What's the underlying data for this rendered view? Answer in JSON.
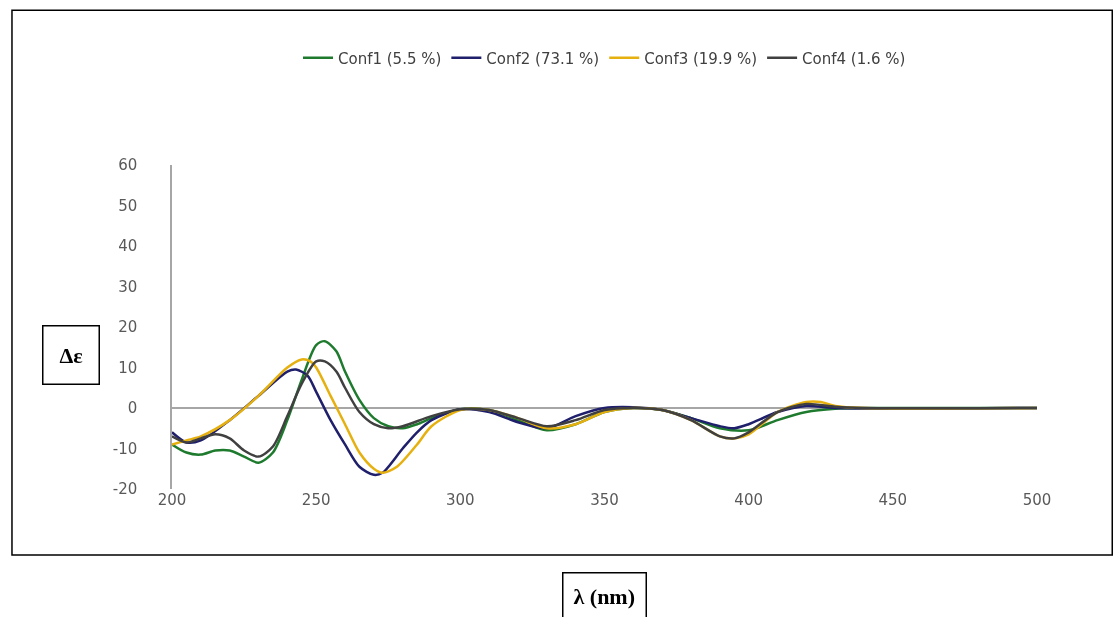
{
  "chart_data": {
    "type": "line",
    "xlabel": "λ (nm)",
    "ylabel": "Δε",
    "xlim": [
      200,
      500
    ],
    "xticks": [
      200,
      250,
      300,
      350,
      400,
      450,
      500
    ],
    "ylim": [
      -20,
      60
    ],
    "yticks": [
      -20,
      -10,
      0,
      10,
      20,
      30,
      40,
      50,
      60
    ],
    "grid": false,
    "legend": "top",
    "marker": "none",
    "line_style": "solid",
    "ref_lines": [
      {
        "axis": "y",
        "value": 0,
        "color": "#a6a6a6"
      }
    ],
    "series": [
      {
        "name": "Conf1 (5.5 %)",
        "color": "#1e7b2e",
        "x": [
          200,
          205,
          210,
          215,
          220,
          225,
          230,
          235,
          240,
          245,
          250,
          253,
          257,
          260,
          265,
          270,
          275,
          280,
          285,
          290,
          300,
          310,
          320,
          330,
          340,
          350,
          360,
          370,
          380,
          390,
          400,
          410,
          420,
          430,
          440,
          500
        ],
        "values": [
          -9,
          -11,
          -11.5,
          -10.5,
          -10.5,
          -12,
          -13.5,
          -11,
          -3,
          7,
          15.5,
          16.5,
          14,
          9,
          2,
          -2.5,
          -4.5,
          -5,
          -4,
          -2.5,
          -0.3,
          -0.5,
          -3,
          -5.5,
          -4,
          -1,
          0,
          -0.5,
          -2.5,
          -5,
          -5.5,
          -3,
          -1,
          -0.2,
          0,
          0
        ]
      },
      {
        "name": "Conf2 (73.1 %)",
        "color": "#1f1f6b",
        "x": [
          200,
          205,
          210,
          220,
          230,
          240,
          243,
          247,
          250,
          255,
          260,
          265,
          270,
          273,
          280,
          285,
          290,
          300,
          310,
          320,
          330,
          340,
          350,
          360,
          370,
          380,
          390,
          395,
          400,
          410,
          420,
          430,
          500
        ],
        "values": [
          -6,
          -8.5,
          -8,
          -3,
          3,
          9,
          9.5,
          8,
          4,
          -3,
          -9,
          -14.5,
          -16.5,
          -16,
          -10,
          -6,
          -3,
          -0.3,
          -1,
          -3.5,
          -5,
          -2,
          0,
          0.2,
          -0.5,
          -2.5,
          -4.5,
          -5,
          -4,
          -1,
          0.5,
          0,
          0
        ]
      },
      {
        "name": "Conf3 (19.9 %)",
        "color": "#e6b00e",
        "x": [
          200,
          205,
          210,
          220,
          230,
          240,
          245,
          248,
          250,
          255,
          260,
          265,
          270,
          273,
          278,
          285,
          290,
          300,
          310,
          320,
          330,
          340,
          350,
          360,
          370,
          380,
          390,
          395,
          400,
          410,
          420,
          425,
          430,
          440,
          500
        ],
        "values": [
          -9,
          -8,
          -7,
          -3,
          3,
          10,
          12,
          11.5,
          10,
          3,
          -4,
          -11,
          -15,
          -16,
          -14.5,
          -9,
          -4.5,
          -0.5,
          -0.5,
          -2.5,
          -5,
          -4,
          -1,
          0,
          -0.5,
          -3,
          -7,
          -7.5,
          -6.5,
          -1,
          1.5,
          1.5,
          0.5,
          0,
          0
        ]
      },
      {
        "name": "Conf4 (1.6 %)",
        "color": "#404040",
        "x": [
          200,
          205,
          210,
          215,
          220,
          225,
          230,
          235,
          240,
          245,
          250,
          253,
          257,
          260,
          265,
          270,
          275,
          280,
          290,
          300,
          310,
          320,
          330,
          340,
          350,
          360,
          370,
          380,
          390,
          395,
          400,
          410,
          420,
          430,
          440,
          500
        ],
        "values": [
          -7,
          -8.5,
          -7.5,
          -6.5,
          -7.5,
          -10.5,
          -12,
          -9.5,
          -2,
          6,
          11.5,
          11.5,
          9,
          5,
          -1,
          -4,
          -5,
          -4.5,
          -2,
          -0.3,
          -0.5,
          -2.5,
          -4.5,
          -3,
          -0.5,
          0,
          -0.5,
          -3,
          -7,
          -7.5,
          -6,
          -1,
          1,
          0.3,
          0,
          0
        ]
      }
    ]
  }
}
